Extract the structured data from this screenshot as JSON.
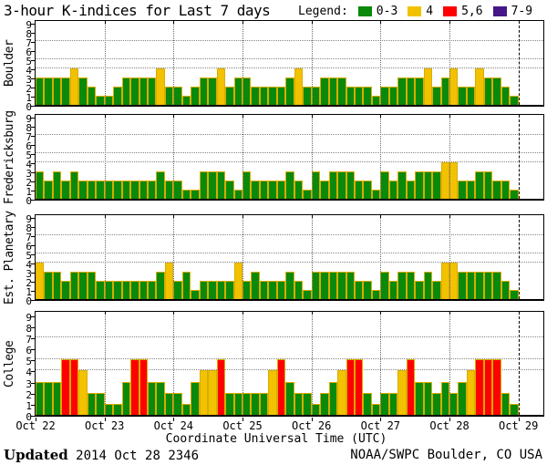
{
  "header": {
    "title": "3-hour K-indices for Last 7 days",
    "legend_label": "Legend:",
    "legend_items": [
      {
        "label": "0-3",
        "color": "#0a8a0a"
      },
      {
        "label": "4",
        "color": "#f2c200"
      },
      {
        "label": "5,6",
        "color": "#ff0000"
      },
      {
        "label": "7-9",
        "color": "#451788"
      }
    ]
  },
  "chart_data": {
    "type": "bar",
    "title": "3-hour K-indices for Last 7 days",
    "xlabel": "Coordinate Universal Time (UTC)",
    "x_day_labels": [
      "Oct 22",
      "Oct 23",
      "Oct 24",
      "Oct 25",
      "Oct 26",
      "Oct 27",
      "Oct 28",
      "Oct 29"
    ],
    "bars_per_day": 8,
    "interval_hours": 3,
    "ylim": [
      0,
      9
    ],
    "yticks": [
      0,
      1,
      2,
      3,
      4,
      5,
      6,
      7,
      8,
      9
    ],
    "threshold_gridlines": [
      4,
      5,
      7
    ],
    "legend_bins": {
      "green": "0-3",
      "yellow": "4",
      "red": "5,6",
      "purple": "7-9"
    },
    "panels": [
      {
        "station": "Boulder",
        "values": [
          3,
          3,
          3,
          3,
          4,
          3,
          2,
          1,
          1,
          2,
          3,
          3,
          3,
          3,
          4,
          2,
          2,
          1,
          2,
          3,
          3,
          4,
          2,
          3,
          3,
          2,
          2,
          2,
          2,
          3,
          4,
          2,
          2,
          3,
          3,
          3,
          2,
          2,
          2,
          1,
          2,
          2,
          3,
          3,
          3,
          4,
          2,
          3,
          4,
          2,
          2,
          4,
          3,
          3,
          2,
          1
        ]
      },
      {
        "station": "Fredericksburg",
        "values": [
          3,
          2,
          3,
          2,
          3,
          2,
          2,
          2,
          2,
          2,
          2,
          2,
          2,
          2,
          3,
          2,
          2,
          1,
          1,
          3,
          3,
          3,
          2,
          1,
          3,
          2,
          2,
          2,
          2,
          3,
          2,
          1,
          3,
          2,
          3,
          3,
          3,
          2,
          2,
          1,
          3,
          2,
          3,
          2,
          3,
          3,
          3,
          4,
          4,
          2,
          2,
          3,
          3,
          2,
          2,
          1
        ]
      },
      {
        "station": "Est. Planetary",
        "values": [
          4,
          3,
          3,
          2,
          3,
          3,
          3,
          2,
          2,
          2,
          2,
          2,
          2,
          2,
          3,
          4,
          2,
          3,
          1,
          2,
          2,
          2,
          2,
          4,
          2,
          3,
          2,
          2,
          2,
          3,
          2,
          1,
          3,
          3,
          3,
          3,
          3,
          2,
          2,
          1,
          3,
          2,
          3,
          3,
          2,
          3,
          2,
          4,
          4,
          3,
          3,
          3,
          3,
          3,
          2,
          1
        ]
      },
      {
        "station": "College",
        "values": [
          3,
          3,
          3,
          5,
          5,
          4,
          2,
          2,
          1,
          1,
          3,
          5,
          5,
          3,
          3,
          2,
          2,
          1,
          3,
          4,
          4,
          5,
          2,
          2,
          2,
          2,
          2,
          4,
          5,
          3,
          2,
          2,
          1,
          2,
          3,
          4,
          5,
          5,
          2,
          1,
          2,
          2,
          4,
          5,
          3,
          3,
          2,
          3,
          2,
          3,
          4,
          5,
          5,
          5,
          2,
          1
        ]
      }
    ]
  },
  "footer": {
    "updated_label": "Updated",
    "updated_value": " 2014 Oct 28 2346",
    "credit": "NOAA/SWPC Boulder, CO USA"
  },
  "colors": {
    "green": "#0a8a0a",
    "yellow": "#f2c200",
    "red": "#ff0000",
    "purple": "#451788",
    "bar_border": "#d9ac00",
    "grid": "#858585",
    "frame": "#000000",
    "background": "#ffffff"
  }
}
